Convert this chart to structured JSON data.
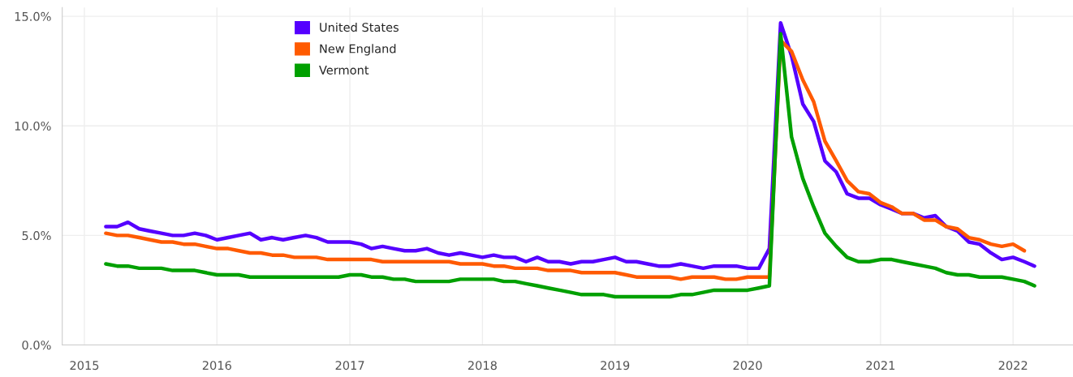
{
  "chart_data": {
    "type": "line",
    "x": [
      "2015-03",
      "2015-04",
      "2015-05",
      "2015-06",
      "2015-07",
      "2015-08",
      "2015-09",
      "2015-10",
      "2015-11",
      "2015-12",
      "2016-01",
      "2016-02",
      "2016-03",
      "2016-04",
      "2016-05",
      "2016-06",
      "2016-07",
      "2016-08",
      "2016-09",
      "2016-10",
      "2016-11",
      "2016-12",
      "2017-01",
      "2017-02",
      "2017-03",
      "2017-04",
      "2017-05",
      "2017-06",
      "2017-07",
      "2017-08",
      "2017-09",
      "2017-10",
      "2017-11",
      "2017-12",
      "2018-01",
      "2018-02",
      "2018-03",
      "2018-04",
      "2018-05",
      "2018-06",
      "2018-07",
      "2018-08",
      "2018-09",
      "2018-10",
      "2018-11",
      "2018-12",
      "2019-01",
      "2019-02",
      "2019-03",
      "2019-04",
      "2019-05",
      "2019-06",
      "2019-07",
      "2019-08",
      "2019-09",
      "2019-10",
      "2019-11",
      "2019-12",
      "2020-01",
      "2020-02",
      "2020-03",
      "2020-04",
      "2020-05",
      "2020-06",
      "2020-07",
      "2020-08",
      "2020-09",
      "2020-10",
      "2020-11",
      "2020-12",
      "2021-01",
      "2021-02",
      "2021-03",
      "2021-04",
      "2021-05",
      "2021-06",
      "2021-07",
      "2021-08",
      "2021-09",
      "2021-10",
      "2021-11",
      "2021-12",
      "2022-01",
      "2022-02",
      "2022-03"
    ],
    "series": [
      {
        "name": "United States",
        "color": "#5500ff",
        "values": [
          5.4,
          5.4,
          5.6,
          5.3,
          5.2,
          5.1,
          5.0,
          5.0,
          5.1,
          5.0,
          4.8,
          4.9,
          5.0,
          5.1,
          4.8,
          4.9,
          4.8,
          4.9,
          5.0,
          4.9,
          4.7,
          4.7,
          4.7,
          4.6,
          4.4,
          4.5,
          4.4,
          4.3,
          4.3,
          4.4,
          4.2,
          4.1,
          4.2,
          4.1,
          4.0,
          4.1,
          4.0,
          4.0,
          3.8,
          4.0,
          3.8,
          3.8,
          3.7,
          3.8,
          3.8,
          3.9,
          4.0,
          3.8,
          3.8,
          3.7,
          3.6,
          3.6,
          3.7,
          3.6,
          3.5,
          3.6,
          3.6,
          3.6,
          3.5,
          3.5,
          4.4,
          14.7,
          13.2,
          11.0,
          10.2,
          8.4,
          7.9,
          6.9,
          6.7,
          6.7,
          6.4,
          6.2,
          6.0,
          6.0,
          5.8,
          5.9,
          5.4,
          5.2,
          4.7,
          4.6,
          4.2,
          3.9,
          4.0,
          3.8,
          3.6
        ]
      },
      {
        "name": "New England",
        "color": "#ff5a00",
        "values": [
          5.1,
          5.0,
          5.0,
          4.9,
          4.8,
          4.7,
          4.7,
          4.6,
          4.6,
          4.5,
          4.4,
          4.4,
          4.3,
          4.2,
          4.2,
          4.1,
          4.1,
          4.0,
          4.0,
          4.0,
          3.9,
          3.9,
          3.9,
          3.9,
          3.9,
          3.8,
          3.8,
          3.8,
          3.8,
          3.8,
          3.8,
          3.8,
          3.7,
          3.7,
          3.7,
          3.6,
          3.6,
          3.5,
          3.5,
          3.5,
          3.4,
          3.4,
          3.4,
          3.3,
          3.3,
          3.3,
          3.3,
          3.2,
          3.1,
          3.1,
          3.1,
          3.1,
          3.0,
          3.1,
          3.1,
          3.1,
          3.0,
          3.0,
          3.1,
          3.1,
          3.1,
          13.9,
          13.4,
          12.1,
          11.1,
          9.3,
          8.4,
          7.5,
          7.0,
          6.9,
          6.5,
          6.3,
          6.0,
          6.0,
          5.7,
          5.7,
          5.4,
          5.3,
          4.9,
          4.8,
          4.6,
          4.5,
          4.6,
          4.3,
          null
        ]
      },
      {
        "name": "Vermont",
        "color": "#00a000",
        "values": [
          3.7,
          3.6,
          3.6,
          3.5,
          3.5,
          3.5,
          3.4,
          3.4,
          3.4,
          3.3,
          3.2,
          3.2,
          3.2,
          3.1,
          3.1,
          3.1,
          3.1,
          3.1,
          3.1,
          3.1,
          3.1,
          3.1,
          3.2,
          3.2,
          3.1,
          3.1,
          3.0,
          3.0,
          2.9,
          2.9,
          2.9,
          2.9,
          3.0,
          3.0,
          3.0,
          3.0,
          2.9,
          2.9,
          2.8,
          2.7,
          2.6,
          2.5,
          2.4,
          2.3,
          2.3,
          2.3,
          2.2,
          2.2,
          2.2,
          2.2,
          2.2,
          2.2,
          2.3,
          2.3,
          2.4,
          2.5,
          2.5,
          2.5,
          2.5,
          2.6,
          2.7,
          14.2,
          9.5,
          7.6,
          6.3,
          5.1,
          4.5,
          4.0,
          3.8,
          3.8,
          3.9,
          3.9,
          3.8,
          3.7,
          3.6,
          3.5,
          3.3,
          3.2,
          3.2,
          3.1,
          3.1,
          3.1,
          3.0,
          2.9,
          2.7
        ]
      }
    ],
    "xlim": [
      "2014-11-01",
      "2022-06-15"
    ],
    "xticks": [
      "2015",
      "2016",
      "2017",
      "2018",
      "2019",
      "2020",
      "2021",
      "2022"
    ],
    "ylim": [
      0,
      15.4
    ],
    "yticks": [
      {
        "value": 0,
        "label": "0.0%"
      },
      {
        "value": 5,
        "label": "5.0%"
      },
      {
        "value": 10,
        "label": "10.0%"
      },
      {
        "value": 15,
        "label": "15.0%"
      }
    ],
    "grid": true,
    "legend": "top left",
    "marker": "none",
    "line_style": "solid"
  }
}
